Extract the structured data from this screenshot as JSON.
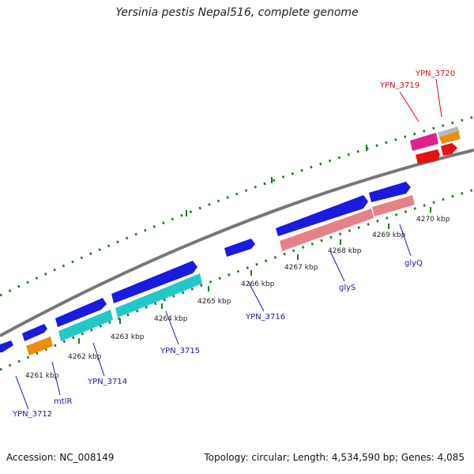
{
  "title": "Yersinia pestis Nepal516, complete genome",
  "footer": {
    "accession": "Accession: NC_008149",
    "stats": "Topology: circular; Length: 4,534,590 bp; Genes: 4,085"
  },
  "colors": {
    "backbone": "#777777",
    "ticks": "#1f7a1f",
    "label_blue": "#1a1aa0",
    "label_red": "#cc1111",
    "gene_blue": "#1a1ae0",
    "gene_cyan": "#22c8c8",
    "gene_orange": "#f08c0a",
    "gene_pink": "#e8808a",
    "gene_magenta": "#e0208c",
    "gene_red": "#e81010",
    "gene_gray": "#b8b8b8"
  },
  "kbp_ticks": [
    "4261 kbp",
    "4262 kbp",
    "4263 kbp",
    "4264 kbp",
    "4265 kbp",
    "4266 kbp",
    "4267 kbp",
    "4268 kbp",
    "4269 kbp",
    "4270 kbp"
  ],
  "gene_labels": [
    {
      "text": "YPN_3712",
      "color": "blue"
    },
    {
      "text": "mtlR",
      "color": "blue"
    },
    {
      "text": "YPN_3714",
      "color": "blue"
    },
    {
      "text": "YPN_3715",
      "color": "blue"
    },
    {
      "text": "YPN_3716",
      "color": "blue"
    },
    {
      "text": "glyS",
      "color": "blue"
    },
    {
      "text": "glyQ",
      "color": "blue"
    },
    {
      "text": "YPN_3719",
      "color": "red"
    },
    {
      "text": "YPN_3720",
      "color": "red"
    }
  ]
}
